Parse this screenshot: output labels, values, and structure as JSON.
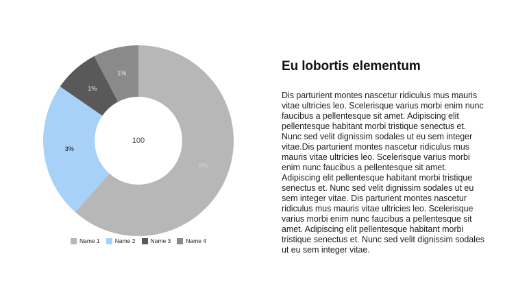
{
  "page": {
    "background": "#ffffff"
  },
  "article": {
    "heading": "Eu lobortis elementum",
    "body": "Dis parturient montes nascetur ridiculus mus mauris vitae ultricies leo. Scelerisque varius morbi enim nunc faucibus a pellentesque sit amet. Adipiscing elit pellentesque habitant morbi tristique senectus et. Nunc sed velit dignissim sodales ut eu sem integer vitae.Dis parturient montes nascetur ridiculus mus mauris vitae ultricies leo. Scelerisque varius morbi enim nunc faucibus a pellentesque sit amet. Adipiscing elit pellentesque habitant morbi tristique senectus et. Nunc sed velit dignissim sodales ut eu sem integer vitae. Dis parturient montes nascetur ridiculus mus mauris vitae ultricies leo. Scelerisque varius morbi enim nunc faucibus a pellentesque sit amet. Adipiscing elit pellentesque habitant morbi tristique senectus et. Nunc sed velit dignissim sodales ut eu sem integer vitae."
  },
  "chart_data": {
    "type": "pie",
    "subtype": "donut",
    "categories": [
      "Name 1",
      "Name 2",
      "Name 3",
      "Name 4"
    ],
    "values": [
      8,
      3,
      1,
      1
    ],
    "slice_labels": [
      "8%",
      "3%",
      "1%",
      "1%"
    ],
    "colors": [
      "#b7b7b7",
      "#a8d1f8",
      "#595959",
      "#8a8a8a"
    ],
    "label_colors": [
      "#d6d6d6",
      "#141414",
      "#ededed",
      "#ededed"
    ],
    "center_label": "100",
    "legend_position": "bottom",
    "start_angle_deg": 0,
    "inner_radius_ratio": 0.46
  }
}
